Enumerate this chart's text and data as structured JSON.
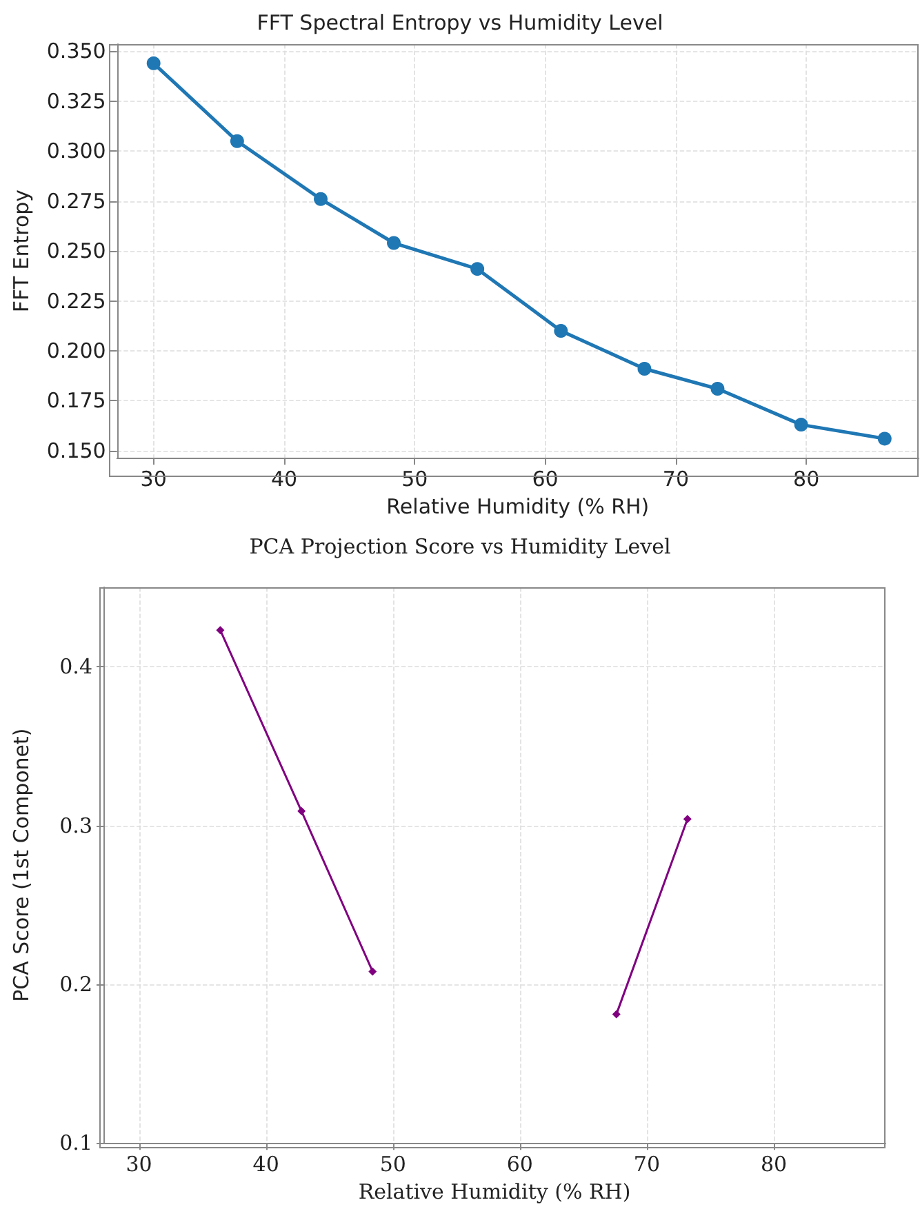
{
  "chart_data": [
    {
      "type": "line",
      "title": "FFT Spectral Entropy vs Humidity Level",
      "xlabel": "Relative Humidity (% RH)",
      "ylabel": "FFT Entropy",
      "x": [
        30,
        36.4,
        42.8,
        48.4,
        54.8,
        61.2,
        67.6,
        73.2,
        79.6,
        86
      ],
      "series": [
        {
          "color": "#1f77b4",
          "values": [
            0.344,
            0.305,
            0.276,
            0.254,
            0.241,
            0.21,
            0.191,
            0.181,
            0.163,
            0.156
          ]
        }
      ],
      "xlim": [
        27.2,
        88.6
      ],
      "ylim": [
        0.1464,
        0.3536
      ],
      "xticks": [
        30,
        40,
        50,
        60,
        70,
        80
      ],
      "yticks": [
        {
          "value": 0.15,
          "label": "0.150"
        },
        {
          "value": 0.175,
          "label": "0.175"
        },
        {
          "value": 0.2,
          "label": "0.200"
        },
        {
          "value": 0.225,
          "label": "0.225"
        },
        {
          "value": 0.25,
          "label": "0.250"
        },
        {
          "value": 0.275,
          "label": "0.275"
        },
        {
          "value": 0.3,
          "label": "0.300"
        },
        {
          "value": 0.325,
          "label": "0.325"
        },
        {
          "value": 0.35,
          "label": "0.350"
        }
      ],
      "grid": true,
      "marker": "circle",
      "line_style": "solid"
    },
    {
      "type": "line",
      "title": "PCA Projection Score vs Humidity Level",
      "xlabel": "Relative Humidity (% RH)",
      "ylabel": "PCA Score (1st Componet)",
      "x": [
        36.4,
        42.8,
        48.4,
        54.8,
        61.2,
        67.6,
        73.2
      ],
      "series": [
        {
          "color": "#800080",
          "values": [
            0.423,
            0.309,
            0.208,
            null,
            null,
            0.181,
            0.304
          ]
        }
      ],
      "xlim": [
        27.2,
        88.8
      ],
      "ylim": [
        0.1,
        0.45
      ],
      "xticks": [
        30,
        40,
        50,
        60,
        70,
        80
      ],
      "yticks": [
        0.1,
        0.2,
        0.3,
        0.4
      ],
      "grid": true,
      "marker": "diamond",
      "line_style": "solid"
    }
  ]
}
